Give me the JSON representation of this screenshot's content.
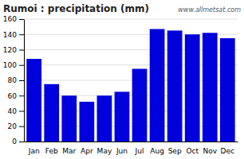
{
  "chart_data": {
    "type": "bar",
    "title": "Rumoi : precipitation (mm)",
    "categories": [
      "Jan",
      "Feb",
      "Mar",
      "Apr",
      "May",
      "Jun",
      "Jul",
      "Aug",
      "Sep",
      "Oct",
      "Nov",
      "Dec"
    ],
    "values": [
      108,
      75,
      60,
      52,
      60,
      65,
      95,
      147,
      145,
      140,
      142,
      135
    ],
    "color": "#0000dd",
    "ylim": [
      0,
      160
    ],
    "yticks": [
      0,
      20,
      40,
      60,
      80,
      100,
      120,
      140,
      160
    ],
    "grid": true,
    "annotations": [
      "www.allmetsat.com"
    ]
  }
}
